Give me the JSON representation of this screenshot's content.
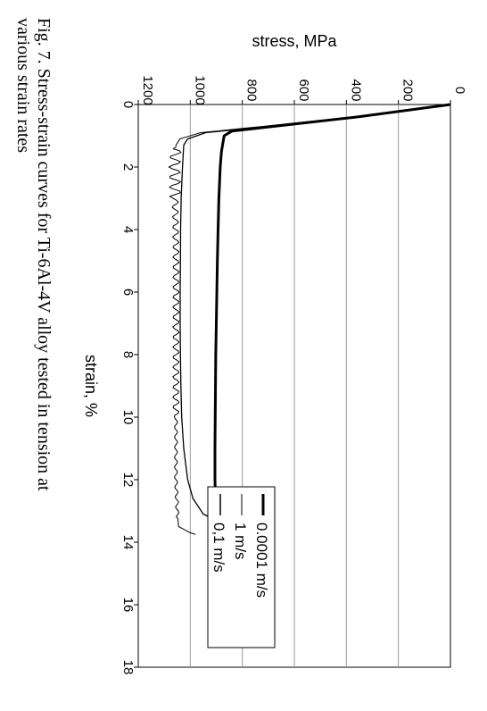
{
  "caption": {
    "line1": "Fig. 7. Stress-strain curves for Ti-6Al-4V alloy tested in tension at",
    "line2": "various strain rates"
  },
  "chart_data": {
    "type": "line",
    "title": "",
    "xlabel": "strain, %",
    "ylabel": "stress, MPa",
    "xlim": [
      0,
      18
    ],
    "ylim": [
      0,
      1200
    ],
    "x_ticks": [
      "0",
      "2",
      "4",
      "6",
      "8",
      "10",
      "12",
      "14",
      "16",
      "18"
    ],
    "y_ticks": [
      "0",
      "200",
      "400",
      "600",
      "800",
      "1000",
      "1200"
    ],
    "grid": "horizontal stress gridlines",
    "legend_position": "lower-right",
    "series": [
      {
        "name": "0.0001 m/s",
        "style": "thick",
        "color": "#000000",
        "points": [
          [
            0,
            0
          ],
          [
            0.4,
            360
          ],
          [
            0.7,
            680
          ],
          [
            0.85,
            840
          ],
          [
            1.0,
            870
          ],
          [
            1.5,
            880
          ],
          [
            2,
            885
          ],
          [
            3,
            890
          ],
          [
            4,
            893
          ],
          [
            5,
            896
          ],
          [
            6,
            898
          ],
          [
            7,
            900
          ],
          [
            8,
            902
          ],
          [
            9,
            903
          ],
          [
            10,
            904
          ],
          [
            11,
            905
          ],
          [
            12,
            905
          ],
          [
            13,
            902
          ],
          [
            13.7,
            895
          ],
          [
            14.3,
            880
          ],
          [
            14.9,
            850
          ],
          [
            15.3,
            815
          ],
          [
            15.6,
            775
          ]
        ]
      },
      {
        "name": "1 m/s",
        "style": "thin-oscillating",
        "color": "#000000",
        "points": [
          [
            0,
            0
          ],
          [
            0.4,
            380
          ],
          [
            0.7,
            720
          ],
          [
            0.9,
            960
          ],
          [
            1.1,
            1040
          ],
          [
            1.3,
            1055
          ],
          [
            2,
            1060
          ],
          [
            3,
            1058
          ],
          [
            4,
            1056
          ],
          [
            5,
            1055
          ],
          [
            6,
            1055
          ],
          [
            7,
            1055
          ],
          [
            8,
            1055
          ],
          [
            9,
            1055
          ],
          [
            10,
            1055
          ],
          [
            11,
            1055
          ],
          [
            12,
            1055
          ],
          [
            13,
            1050
          ],
          [
            13.5,
            1045
          ],
          [
            13.7,
            1000
          ],
          [
            13.75,
            980
          ]
        ]
      },
      {
        "name": "0,1 m/s",
        "style": "thin",
        "color": "#000000",
        "points": [
          [
            0,
            0
          ],
          [
            0.4,
            370
          ],
          [
            0.7,
            700
          ],
          [
            0.9,
            940
          ],
          [
            1.1,
            1010
          ],
          [
            1.3,
            1025
          ],
          [
            2,
            1030
          ],
          [
            3,
            1035
          ],
          [
            4,
            1037
          ],
          [
            5,
            1038
          ],
          [
            6,
            1039
          ],
          [
            7,
            1039
          ],
          [
            8,
            1038
          ],
          [
            9,
            1036
          ],
          [
            10,
            1033
          ],
          [
            11,
            1025
          ],
          [
            12,
            1010
          ],
          [
            12.6,
            990
          ],
          [
            13.1,
            950
          ],
          [
            13.4,
            880
          ],
          [
            13.6,
            810
          ]
        ]
      }
    ]
  }
}
